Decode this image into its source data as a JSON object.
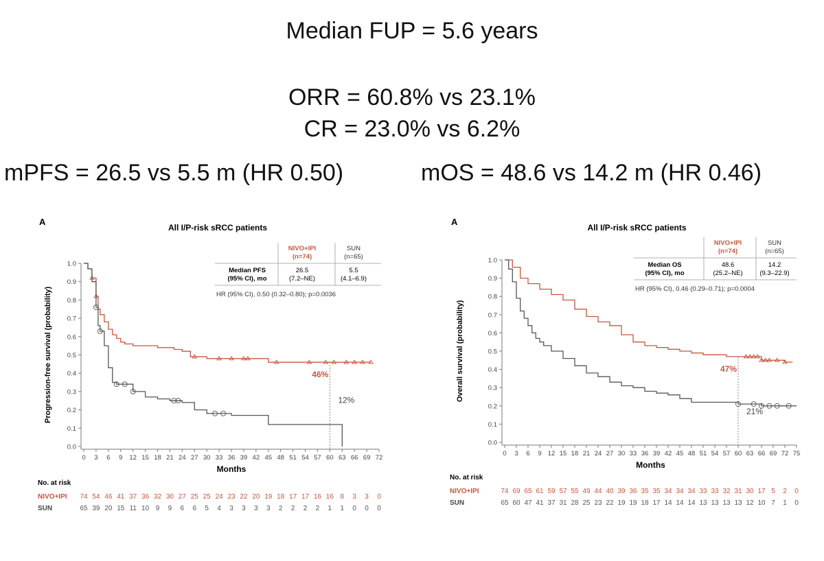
{
  "header": {
    "line1": "Median FUP = 5.6 years",
    "line2": "ORR = 60.8% vs 23.1%",
    "line3": "CR = 23.0% vs 6.2%",
    "pfs_summary": "mPFS = 26.5 vs 5.5 m (HR 0.50)",
    "os_summary": "mOS = 48.6 vs 14.2 m (HR 0.46)"
  },
  "colors": {
    "nivo": "#c8553d",
    "sun": "#555555",
    "axis": "#777777"
  },
  "chart_data": [
    {
      "type": "line",
      "panel_label": "A",
      "title": "All I/P-risk sRCC patients",
      "xlabel": "Months",
      "ylabel": "Progression-free survival (probability)",
      "xlim": [
        0,
        72
      ],
      "ylim": [
        0,
        1.0
      ],
      "x_ticks": [
        0,
        3,
        6,
        9,
        12,
        15,
        18,
        21,
        24,
        27,
        30,
        33,
        36,
        39,
        42,
        45,
        48,
        51,
        54,
        57,
        60,
        63,
        66,
        69,
        72
      ],
      "y_ticks": [
        "0.0",
        "0.1",
        "0.2",
        "0.3",
        "0.4",
        "0.5",
        "0.6",
        "0.7",
        "0.8",
        "0.9",
        "1.0"
      ],
      "series": [
        {
          "name": "NIVO+IPI",
          "color": "#c8553d",
          "x": [
            0,
            1,
            2,
            3,
            3.5,
            4,
            5,
            6,
            7,
            8,
            9,
            10,
            12,
            15,
            18,
            20,
            22,
            24,
            26,
            30,
            36,
            42,
            45,
            48,
            54,
            60,
            63,
            66,
            69,
            70
          ],
          "y": [
            1.0,
            0.97,
            0.92,
            0.82,
            0.75,
            0.72,
            0.68,
            0.64,
            0.61,
            0.59,
            0.57,
            0.56,
            0.55,
            0.55,
            0.54,
            0.54,
            0.53,
            0.52,
            0.49,
            0.48,
            0.48,
            0.48,
            0.46,
            0.46,
            0.46,
            0.46,
            0.46,
            0.46,
            0.46,
            0.46
          ],
          "censor_x": [
            2,
            3,
            27,
            33,
            36,
            39,
            40,
            47,
            55,
            59,
            61,
            64,
            66,
            68,
            70
          ],
          "end_label": "46%"
        },
        {
          "name": "SUN",
          "color": "#555555",
          "x": [
            0,
            1,
            2,
            3,
            3.5,
            4,
            5,
            6,
            7,
            8,
            10,
            12,
            15,
            18,
            21,
            24,
            27,
            30,
            36,
            42,
            45,
            50,
            55,
            60,
            63
          ],
          "y": [
            1.0,
            0.97,
            0.9,
            0.76,
            0.66,
            0.63,
            0.55,
            0.43,
            0.35,
            0.34,
            0.34,
            0.3,
            0.27,
            0.26,
            0.25,
            0.24,
            0.2,
            0.18,
            0.17,
            0.17,
            0.12,
            0.12,
            0.12,
            0.12,
            0.0
          ],
          "censor_x": [
            3,
            4,
            8,
            10,
            12,
            22,
            23,
            32,
            34
          ],
          "end_label": "12%"
        }
      ],
      "table": {
        "col_headers": [
          "NIVO+IPI",
          "(n=74)",
          "SUN",
          "(n=65)"
        ],
        "row_label": [
          "Median PFS",
          "(95% CI), mo"
        ],
        "nivo": [
          "26.5",
          "(7.2–NE)"
        ],
        "sun": [
          "5.5",
          "(4.1–6.9)"
        ],
        "hr_text": "HR (95% CI), 0.50 (0.32–0.80); p=0.0036"
      },
      "at_risk": {
        "title": "No. at risk",
        "rows": [
          {
            "name": "NIVO+IPI",
            "values": [
              74,
              54,
              46,
              41,
              37,
              36,
              32,
              30,
              27,
              25,
              25,
              24,
              23,
              22,
              20,
              19,
              18,
              17,
              17,
              16,
              16,
              8,
              3,
              3,
              0
            ]
          },
          {
            "name": "SUN",
            "values": [
              65,
              39,
              20,
              15,
              11,
              10,
              9,
              9,
              6,
              6,
              5,
              4,
              3,
              3,
              3,
              3,
              2,
              2,
              2,
              2,
              1,
              1,
              0,
              0,
              0
            ]
          }
        ]
      }
    },
    {
      "type": "line",
      "panel_label": "A",
      "title": "All I/P-risk sRCC patients",
      "xlabel": "Months",
      "ylabel": "Overall survival (probability)",
      "xlim": [
        0,
        75
      ],
      "ylim": [
        0,
        1.0
      ],
      "x_ticks": [
        0,
        3,
        6,
        9,
        12,
        15,
        18,
        21,
        24,
        27,
        30,
        33,
        36,
        39,
        42,
        45,
        48,
        51,
        54,
        57,
        60,
        63,
        66,
        69,
        72,
        75
      ],
      "y_ticks": [
        "0.0",
        "0.1",
        "0.2",
        "0.3",
        "0.4",
        "0.5",
        "0.6",
        "0.7",
        "0.8",
        "0.9",
        "1.0"
      ],
      "series": [
        {
          "name": "NIVO+IPI",
          "color": "#c8553d",
          "x": [
            0,
            2,
            4,
            6,
            9,
            12,
            15,
            18,
            21,
            24,
            27,
            30,
            33,
            36,
            39,
            42,
            45,
            48,
            51,
            54,
            57,
            60,
            63,
            66,
            69,
            72,
            74
          ],
          "y": [
            1.0,
            0.96,
            0.9,
            0.87,
            0.84,
            0.81,
            0.78,
            0.73,
            0.69,
            0.66,
            0.64,
            0.59,
            0.55,
            0.53,
            0.52,
            0.51,
            0.5,
            0.49,
            0.48,
            0.48,
            0.47,
            0.47,
            0.47,
            0.45,
            0.45,
            0.44,
            0.44
          ],
          "censor_x": [
            62,
            63,
            64,
            65,
            66,
            67,
            68,
            70,
            72
          ],
          "end_label": "47%"
        },
        {
          "name": "SUN",
          "color": "#555555",
          "x": [
            0,
            1,
            2,
            3,
            4,
            5,
            6,
            7,
            8,
            9,
            10,
            12,
            15,
            18,
            21,
            24,
            27,
            30,
            33,
            36,
            39,
            42,
            45,
            48,
            54,
            60,
            63,
            66,
            72,
            75
          ],
          "y": [
            1.0,
            0.95,
            0.88,
            0.79,
            0.72,
            0.68,
            0.64,
            0.6,
            0.57,
            0.55,
            0.53,
            0.5,
            0.46,
            0.42,
            0.38,
            0.36,
            0.33,
            0.31,
            0.3,
            0.28,
            0.27,
            0.26,
            0.24,
            0.22,
            0.22,
            0.21,
            0.21,
            0.2,
            0.2,
            0.2
          ],
          "censor_x": [
            60,
            64,
            66,
            68,
            70,
            73
          ],
          "end_label": "21%"
        }
      ],
      "table": {
        "col_headers": [
          "NIVO+IPI",
          "(n=74)",
          "SUN",
          "(n=65)"
        ],
        "row_label": [
          "Median OS",
          "(95% CI), mo"
        ],
        "nivo": [
          "48.6",
          "(25.2–NE)"
        ],
        "sun": [
          "14.2",
          "(9.3–22.9)"
        ],
        "hr_text": "HR (95% CI), 0.46 (0.29–0.71); p=0.0004"
      },
      "at_risk": {
        "title": "No. at risk",
        "rows": [
          {
            "name": "NIVO+IPI",
            "values": [
              74,
              69,
              65,
              61,
              59,
              57,
              55,
              49,
              44,
              40,
              39,
              36,
              35,
              35,
              34,
              34,
              34,
              33,
              33,
              32,
              31,
              30,
              17,
              5,
              2,
              0
            ]
          },
          {
            "name": "SUN",
            "values": [
              65,
              60,
              47,
              41,
              37,
              31,
              28,
              25,
              23,
              22,
              19,
              19,
              18,
              17,
              14,
              14,
              14,
              13,
              13,
              13,
              13,
              12,
              10,
              7,
              1,
              0
            ]
          }
        ]
      }
    }
  ]
}
